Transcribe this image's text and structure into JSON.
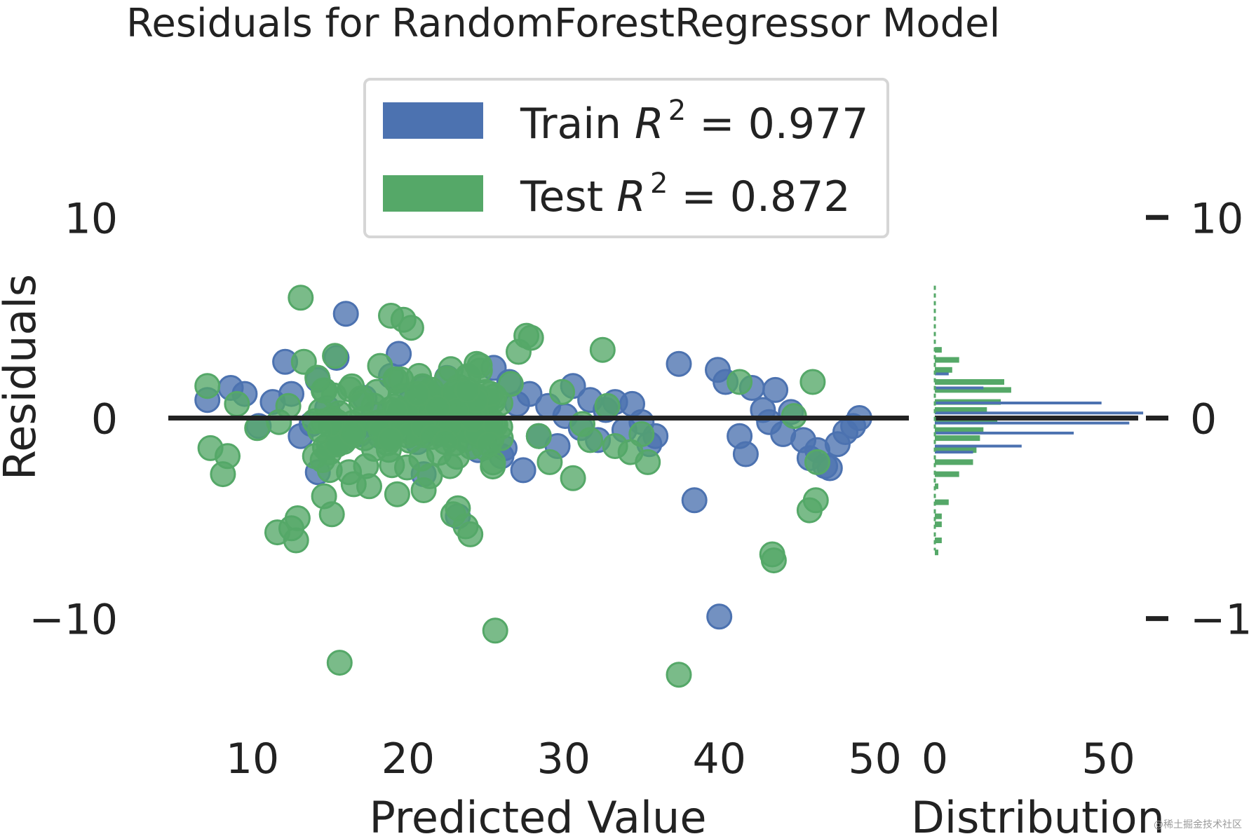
{
  "chart_data": {
    "type": "scatter",
    "title": "Residuals for RandomForestRegressor Model",
    "xlabel": "Predicted Value",
    "ylabel": "Residuals",
    "hist_xlabel": "Distribution",
    "xlim": [
      4.5,
      52
    ],
    "ylim": [
      -15.5,
      17
    ],
    "xticks": [
      "10",
      "20",
      "30",
      "40",
      "50"
    ],
    "yticks": [
      "10",
      "0",
      "−10"
    ],
    "hist_xlim": [
      0,
      62
    ],
    "hist_xticks": [
      "0",
      "50"
    ],
    "grid": false,
    "legend_position": "top-center",
    "colors": {
      "train": "#4c72b0",
      "test": "#55a868",
      "zero_line": "#222222"
    },
    "legend": [
      {
        "label_main": "Train ",
        "label_sym": "R",
        "label_exp": "2",
        "label_val": " = 0.977"
      },
      {
        "label_main": "Test ",
        "label_sym": "R",
        "label_exp": "2",
        "label_val": " = 0.872"
      }
    ],
    "series": [
      {
        "name": "Train",
        "points": [
          [
            7.1,
            0.9
          ],
          [
            8.6,
            1.5
          ],
          [
            9.5,
            1.2
          ],
          [
            10.4,
            -0.4
          ],
          [
            11.3,
            0.8
          ],
          [
            12.1,
            2.8
          ],
          [
            12.5,
            1.2
          ],
          [
            13.1,
            -0.9
          ],
          [
            13.8,
            -0.3
          ],
          [
            14.2,
            1.9
          ],
          [
            14.8,
            0.5
          ],
          [
            15.4,
            3.0
          ],
          [
            16.0,
            5.2
          ],
          [
            16.6,
            -0.6
          ],
          [
            17.2,
            1.0
          ],
          [
            17.8,
            0.2
          ],
          [
            18.2,
            -0.9
          ],
          [
            18.9,
            2.1
          ],
          [
            19.4,
            3.2
          ],
          [
            19.6,
            -0.5
          ],
          [
            20.1,
            0.8
          ],
          [
            20.6,
            -1.2
          ],
          [
            21.0,
            1.5
          ],
          [
            21.5,
            0.3
          ],
          [
            22.0,
            -0.8
          ],
          [
            22.5,
            2.0
          ],
          [
            23.0,
            0.6
          ],
          [
            23.5,
            -0.4
          ],
          [
            24.0,
            1.1
          ],
          [
            24.5,
            -1.6
          ],
          [
            25.0,
            0.4
          ],
          [
            25.5,
            2.5
          ],
          [
            26.0,
            -1.9
          ],
          [
            26.5,
            1.8
          ],
          [
            27.0,
            0.7
          ],
          [
            27.4,
            -2.6
          ],
          [
            27.8,
            1.2
          ],
          [
            28.4,
            -0.9
          ],
          [
            29.0,
            0.6
          ],
          [
            29.6,
            -1.4
          ],
          [
            30.1,
            0.1
          ],
          [
            30.6,
            1.6
          ],
          [
            31.1,
            -0.5
          ],
          [
            31.7,
            0.9
          ],
          [
            32.2,
            -1.1
          ],
          [
            32.7,
            0.4
          ],
          [
            33.3,
            0.8
          ],
          [
            33.9,
            -0.6
          ],
          [
            34.4,
            0.7
          ],
          [
            35.0,
            -0.2
          ],
          [
            35.5,
            -1.3
          ],
          [
            35.9,
            -0.9
          ],
          [
            37.4,
            2.7
          ],
          [
            38.4,
            -4.1
          ],
          [
            39.9,
            2.4
          ],
          [
            40.4,
            1.8
          ],
          [
            40.0,
            -9.9
          ],
          [
            41.3,
            -0.9
          ],
          [
            41.7,
            -1.8
          ],
          [
            42.1,
            1.5
          ],
          [
            42.8,
            0.4
          ],
          [
            43.2,
            -0.2
          ],
          [
            43.6,
            1.4
          ],
          [
            44.1,
            -0.8
          ],
          [
            44.6,
            0.3
          ],
          [
            45.4,
            -1.1
          ],
          [
            45.8,
            -2.0
          ],
          [
            46.3,
            -1.6
          ],
          [
            46.8,
            -2.4
          ],
          [
            47.1,
            -2.5
          ],
          [
            47.6,
            -1.3
          ],
          [
            48.1,
            -0.7
          ],
          [
            48.6,
            -0.4
          ],
          [
            49.0,
            0.0
          ],
          [
            14.2,
            -2.7
          ],
          [
            23.2,
            -4.9
          ],
          [
            21.0,
            -2.8
          ],
          [
            26.2,
            -1.5
          ],
          [
            19.1,
            -0.3
          ],
          [
            16.9,
            -0.8
          ]
        ]
      },
      {
        "name": "Test",
        "points": [
          [
            7.1,
            1.6
          ],
          [
            7.3,
            -1.5
          ],
          [
            8.1,
            -2.8
          ],
          [
            8.4,
            -1.9
          ],
          [
            9.0,
            0.7
          ],
          [
            10.3,
            -0.5
          ],
          [
            11.7,
            -0.2
          ],
          [
            12.3,
            0.6
          ],
          [
            12.5,
            -5.5
          ],
          [
            12.8,
            -6.1
          ],
          [
            12.9,
            -5.0
          ],
          [
            13.1,
            6.0
          ],
          [
            13.3,
            2.8
          ],
          [
            14.6,
            -3.9
          ],
          [
            15.1,
            -4.8
          ],
          [
            15.3,
            3.1
          ],
          [
            15.6,
            -12.2
          ],
          [
            16.2,
            -2.7
          ],
          [
            16.5,
            -3.3
          ],
          [
            17.0,
            0.7
          ],
          [
            17.3,
            -2.4
          ],
          [
            17.5,
            -3.4
          ],
          [
            18.2,
            2.6
          ],
          [
            18.9,
            5.1
          ],
          [
            19.3,
            -3.8
          ],
          [
            19.7,
            4.9
          ],
          [
            20.2,
            4.5
          ],
          [
            20.7,
            2.1
          ],
          [
            21.0,
            -3.6
          ],
          [
            21.4,
            -2.9
          ],
          [
            21.9,
            0.5
          ],
          [
            22.4,
            -1.2
          ],
          [
            22.9,
            -4.8
          ],
          [
            23.2,
            -4.5
          ],
          [
            23.7,
            -5.4
          ],
          [
            24.0,
            -5.8
          ],
          [
            24.4,
            2.7
          ],
          [
            25.2,
            -1.3
          ],
          [
            25.6,
            -10.6
          ],
          [
            26.6,
            1.7
          ],
          [
            27.1,
            3.3
          ],
          [
            27.6,
            4.1
          ],
          [
            27.9,
            4.0
          ],
          [
            28.4,
            -0.9
          ],
          [
            29.1,
            -2.2
          ],
          [
            29.9,
            1.3
          ],
          [
            30.6,
            -3.0
          ],
          [
            31.2,
            -0.3
          ],
          [
            31.7,
            -1.1
          ],
          [
            32.5,
            3.4
          ],
          [
            32.8,
            0.6
          ],
          [
            33.3,
            -1.4
          ],
          [
            34.3,
            -1.7
          ],
          [
            35.0,
            -0.8
          ],
          [
            35.4,
            -2.2
          ],
          [
            37.4,
            -12.8
          ],
          [
            41.3,
            1.8
          ],
          [
            43.4,
            -6.8
          ],
          [
            43.5,
            -7.1
          ],
          [
            44.8,
            0.1
          ],
          [
            46.0,
            1.8
          ],
          [
            46.3,
            -2.2
          ],
          [
            46.2,
            -4.1
          ],
          [
            45.8,
            -4.6
          ],
          [
            11.6,
            -5.7
          ],
          [
            23.8,
            1.4
          ],
          [
            22.7,
            -2.4
          ],
          [
            20.6,
            1.2
          ]
        ],
        "dense_cluster": {
          "x_range": [
            14,
            26
          ],
          "y_range": [
            -3,
            3
          ],
          "approx_points": 160
        }
      }
    ],
    "histograms": [
      {
        "name": "Train",
        "bins": [
          {
            "y": 2.2,
            "count": 4
          },
          {
            "y": 1.5,
            "count": 14
          },
          {
            "y": 0.75,
            "count": 48
          },
          {
            "y": 0.25,
            "count": 60
          },
          {
            "y": -0.25,
            "count": 56
          },
          {
            "y": -0.75,
            "count": 40
          },
          {
            "y": -1.4,
            "count": 25
          },
          {
            "y": -1.7,
            "count": 11
          }
        ]
      },
      {
        "name": "Test",
        "bins": [
          {
            "y": 3.4,
            "count": 2
          },
          {
            "y": 2.9,
            "count": 7
          },
          {
            "y": 2.4,
            "count": 5
          },
          {
            "y": 1.8,
            "count": 20
          },
          {
            "y": 1.4,
            "count": 22
          },
          {
            "y": 0.8,
            "count": 19
          },
          {
            "y": 0.4,
            "count": 15
          },
          {
            "y": -0.1,
            "count": 18
          },
          {
            "y": -0.6,
            "count": 14
          },
          {
            "y": -1.0,
            "count": 13
          },
          {
            "y": -1.6,
            "count": 12
          },
          {
            "y": -2.2,
            "count": 11
          },
          {
            "y": -2.8,
            "count": 7
          },
          {
            "y": -3.4,
            "count": 1
          },
          {
            "y": -4.2,
            "count": 4
          },
          {
            "y": -4.9,
            "count": 2
          },
          {
            "y": -5.3,
            "count": 2
          },
          {
            "y": -6.1,
            "count": 2
          },
          {
            "y": -6.7,
            "count": 1
          }
        ]
      }
    ]
  },
  "watermark": "@稀土掘金技术社区"
}
